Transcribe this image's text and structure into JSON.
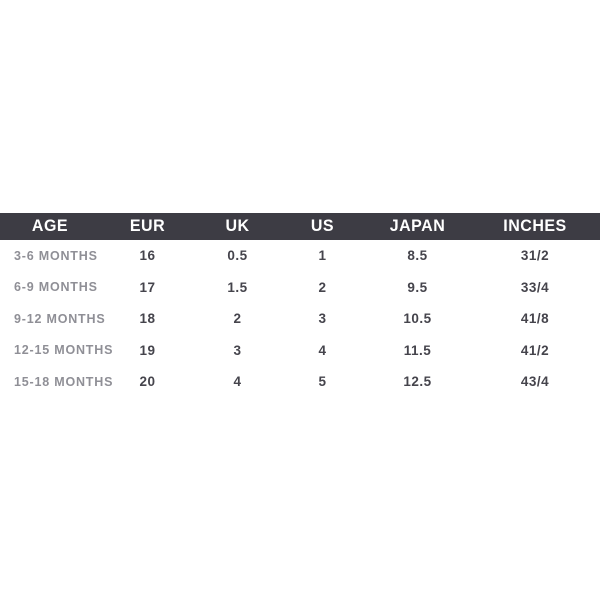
{
  "chart_data": {
    "type": "table",
    "title": "",
    "columns": [
      "AGE",
      "EUR",
      "UK",
      "US",
      "JAPAN",
      "INCHES"
    ],
    "rows": [
      [
        "3-6 MONTHS",
        "16",
        "0.5",
        "1",
        "8.5",
        "31/2"
      ],
      [
        "6-9 MONTHS",
        "17",
        "1.5",
        "2",
        "9.5",
        "33/4"
      ],
      [
        "9-12 MONTHS",
        "18",
        "2",
        "3",
        "10.5",
        "41/8"
      ],
      [
        "12-15 MONTHS",
        "19",
        "3",
        "4",
        "11.5",
        "41/2"
      ],
      [
        "15-18 MONTHS",
        "20",
        "4",
        "5",
        "12.5",
        "43/4"
      ]
    ],
    "layout": {
      "header_position": "top",
      "grid_lines": "none",
      "row_label_alignment": "left",
      "value_alignment": "center"
    }
  },
  "colors": {
    "background": "#ffffff",
    "header_bg": "#3d3c44",
    "header_text": "#ffffff",
    "row_label": "#8f8f96",
    "value_text": "#45444c"
  }
}
